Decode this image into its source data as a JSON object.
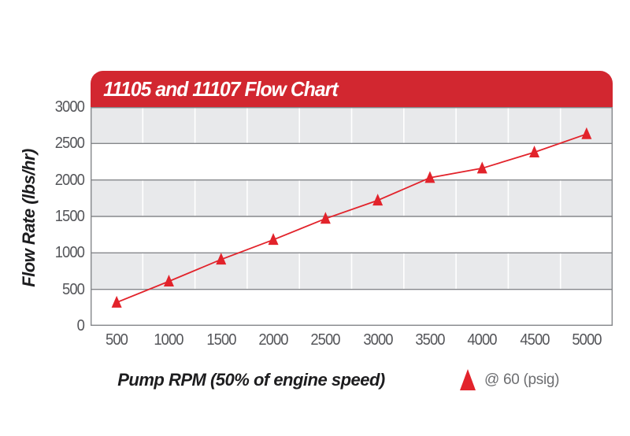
{
  "header": {
    "title": "11105 and 11107 Flow Chart"
  },
  "chart_data": {
    "type": "line",
    "title": "11105 and 11107 Flow Chart",
    "xlabel": "Pump RPM (50% of engine speed)",
    "ylabel": "Flow Rate (lbs/hr)",
    "categories": [
      500,
      1000,
      1500,
      2000,
      2500,
      3000,
      3500,
      4000,
      4500,
      5000
    ],
    "series": [
      {
        "name": "@ 60 (psig)",
        "marker": "triangle",
        "values": [
          320,
          610,
          910,
          1180,
          1470,
          1720,
          2030,
          2160,
          2380,
          2630
        ]
      }
    ],
    "ylim": [
      0,
      3000
    ],
    "yticks": [
      0,
      500,
      1000,
      1500,
      2000,
      2500,
      3000
    ],
    "grid": "horizontal gray gridlines every 500; white vertical separators between category slots; alternating gray/white horizontal bands",
    "legend_position": "bottom-right"
  },
  "legend": {
    "label": "@ 60 (psig)"
  },
  "colors": {
    "header_red": "#d22730",
    "series_red": "#e2232b",
    "band_gray": "#e8e9eb",
    "band_white": "#ffffff",
    "gridline": "#85878b",
    "tick_text": "#545559",
    "axis_title_text": "#1d1d1f",
    "legend_text": "#6d6e71",
    "title_text": "#ffffff"
  }
}
